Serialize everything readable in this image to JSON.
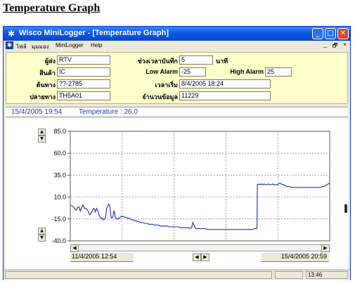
{
  "page_title": "Temperature Graph",
  "window": {
    "title": "Wisco MiniLogger - [Temperature Graph]",
    "controls": {
      "minimize_icon": "minimize-icon",
      "maximize_icon": "maximize-icon",
      "close_icon": "close-icon"
    }
  },
  "menu": {
    "items": [
      {
        "label": "ไฟล์"
      },
      {
        "label": "มุมมอง"
      },
      {
        "label": "MiniLogger"
      },
      {
        "label": "Help"
      }
    ],
    "mdi_minimize": "_",
    "mdi_restore": "🗗",
    "mdi_close": "×"
  },
  "info": {
    "sender_label": "ผู้ส่ง",
    "sender_value": "RTV",
    "product_label": "สินค้า",
    "product_value": "IC",
    "origin_label": "ต้นทาง",
    "origin_value": "??-2785",
    "destination_label": "ปลายทาง",
    "destination_value": "TH5A01",
    "interval_label": "ช่วงเวลาบันทึก",
    "interval_value": "5",
    "interval_unit": "นาที",
    "low_alarm_label": "Low Alarm",
    "low_alarm_value": "-25",
    "high_alarm_label": "High Alarm",
    "high_alarm_value": "25",
    "start_time_label": "เวลาเริ่ม",
    "start_time_value": "8/4/2005  18:24",
    "record_count_label": "จำนวนข้อมูล",
    "record_count_value": "11229"
  },
  "readout": {
    "datetime": "15/4/2005  19:54",
    "temperature": "Temperature : 26.0"
  },
  "range": {
    "start": "11/4/2005  12:54",
    "end": "15/4/2005  20:59"
  },
  "statusbar": {
    "time": "13:46"
  },
  "colors": {
    "titlebar": "#0a58e6",
    "panel": "#ffffcc",
    "line": "#1a2fb5",
    "readout_text": "#1f3cb8",
    "close_button": "#d9472b"
  },
  "chart_data": {
    "type": "line",
    "title": "",
    "xlabel": "",
    "ylabel": "",
    "ylim": [
      -40,
      85
    ],
    "yticks": [
      "85.0",
      "60.0",
      "35.0",
      "10.0",
      "-15.0",
      "-40.0"
    ],
    "ytick_values": [
      85,
      60,
      35,
      10,
      -15,
      -40
    ],
    "grid": true,
    "x_range": [
      "11/4/2005  12:54",
      "15/4/2005  20:59"
    ],
    "series": [
      {
        "values": [
          [
            0,
            0.5
          ],
          [
            2,
            0
          ],
          [
            4,
            -1
          ],
          [
            6,
            -3
          ],
          [
            8,
            -5
          ],
          [
            10,
            -2
          ],
          [
            12,
            -1
          ],
          [
            14,
            -6
          ],
          [
            16,
            -2
          ],
          [
            18,
            1
          ],
          [
            20,
            -3
          ],
          [
            22,
            -3
          ],
          [
            24,
            -5
          ],
          [
            25,
            -6
          ],
          [
            26,
            -8
          ],
          [
            27,
            -10
          ],
          [
            28,
            -10
          ],
          [
            29,
            -8
          ],
          [
            30,
            -7
          ],
          [
            31,
            -6
          ],
          [
            32,
            -4
          ],
          [
            33,
            -3
          ],
          [
            34,
            -4
          ],
          [
            35,
            -7
          ],
          [
            36,
            -5
          ],
          [
            37,
            -3
          ],
          [
            38,
            -5
          ],
          [
            39,
            -6
          ],
          [
            40,
            -10
          ],
          [
            41,
            -11
          ],
          [
            42,
            -13
          ],
          [
            43,
            -14
          ],
          [
            44,
            -15
          ],
          [
            45,
            -14
          ],
          [
            46,
            -15
          ],
          [
            47,
            -16
          ],
          [
            48,
            -15
          ],
          [
            49,
            -14
          ],
          [
            50,
            -10
          ],
          [
            51,
            -3
          ],
          [
            52,
            -1
          ],
          [
            53,
            0
          ],
          [
            54,
            2
          ],
          [
            55,
            1
          ],
          [
            56,
            -4
          ],
          [
            57,
            -12
          ],
          [
            58,
            -14
          ],
          [
            59,
            -13
          ],
          [
            60,
            -12
          ],
          [
            61,
            -6
          ],
          [
            62,
            -7
          ],
          [
            63,
            -13
          ],
          [
            64,
            -14
          ],
          [
            65,
            -15
          ],
          [
            66,
            -15
          ],
          [
            67,
            -15
          ],
          [
            68,
            -14
          ],
          [
            69,
            -14
          ],
          [
            70,
            -13
          ],
          [
            72,
            -12
          ],
          [
            74,
            -12
          ],
          [
            76,
            -13
          ],
          [
            78,
            -13
          ],
          [
            80,
            -14
          ],
          [
            82,
            -14
          ],
          [
            84,
            -15
          ],
          [
            86,
            -16
          ],
          [
            88,
            -16
          ],
          [
            90,
            -17
          ],
          [
            92,
            -17
          ],
          [
            94,
            -18
          ],
          [
            96,
            -18
          ],
          [
            98,
            -19
          ],
          [
            100,
            -19
          ],
          [
            102,
            -19
          ],
          [
            104,
            -20
          ],
          [
            106,
            -20
          ],
          [
            108,
            -20
          ],
          [
            110,
            -21
          ],
          [
            112,
            -21
          ],
          [
            114,
            -21
          ],
          [
            116,
            -21
          ],
          [
            118,
            -22
          ],
          [
            120,
            -22
          ],
          [
            122,
            -22
          ],
          [
            124,
            -22
          ],
          [
            126,
            -23
          ],
          [
            128,
            -23
          ],
          [
            130,
            -23
          ],
          [
            132,
            -23
          ],
          [
            134,
            -23
          ],
          [
            136,
            -23
          ],
          [
            138,
            -24
          ],
          [
            140,
            -24
          ],
          [
            142,
            -24
          ],
          [
            144,
            -24
          ],
          [
            146,
            -24
          ],
          [
            148,
            -24
          ],
          [
            150,
            -24
          ],
          [
            152,
            -24
          ],
          [
            154,
            -25
          ],
          [
            156,
            -25
          ],
          [
            158,
            -25
          ],
          [
            160,
            -25
          ],
          [
            162,
            -25
          ],
          [
            164,
            -25
          ],
          [
            166,
            -25
          ],
          [
            168,
            -26
          ],
          [
            170,
            -25
          ],
          [
            172,
            -19
          ],
          [
            174,
            -23
          ],
          [
            176,
            -26
          ],
          [
            178,
            -26
          ],
          [
            180,
            -26
          ],
          [
            182,
            -26
          ],
          [
            184,
            -26
          ],
          [
            186,
            -26
          ],
          [
            188,
            -26
          ],
          [
            190,
            -26
          ],
          [
            192,
            -27
          ],
          [
            194,
            -27
          ],
          [
            196,
            -27
          ],
          [
            198,
            -27
          ],
          [
            200,
            -27
          ],
          [
            202,
            -27
          ],
          [
            204,
            -27
          ],
          [
            206,
            -27
          ],
          [
            208,
            -27
          ],
          [
            210,
            -27
          ],
          [
            212,
            -27
          ],
          [
            214,
            -27
          ],
          [
            216,
            -27
          ],
          [
            218,
            -27
          ],
          [
            220,
            -27
          ],
          [
            222,
            -27
          ],
          [
            224,
            -27
          ],
          [
            226,
            -27
          ],
          [
            228,
            -27
          ],
          [
            230,
            -27
          ],
          [
            232,
            -27
          ],
          [
            234,
            -27
          ],
          [
            236,
            -27
          ],
          [
            238,
            -27
          ],
          [
            240,
            -27
          ],
          [
            242,
            -27
          ],
          [
            244,
            -27
          ],
          [
            246,
            -27
          ],
          [
            248,
            -27
          ],
          [
            250,
            -27
          ],
          [
            252,
            -27
          ],
          [
            254,
            -27
          ],
          [
            256,
            -27
          ],
          [
            258,
            -26
          ],
          [
            260,
            -26
          ],
          [
            262,
            -26
          ],
          [
            262.5,
            24
          ],
          [
            264,
            25
          ],
          [
            266,
            24
          ],
          [
            268,
            25
          ],
          [
            270,
            24
          ],
          [
            272,
            25
          ],
          [
            274,
            24
          ],
          [
            276,
            24
          ],
          [
            278,
            25
          ],
          [
            280,
            24
          ],
          [
            282,
            24
          ],
          [
            284,
            25
          ],
          [
            286,
            24
          ],
          [
            288,
            24
          ],
          [
            290,
            24
          ],
          [
            292,
            25
          ],
          [
            294,
            26
          ],
          [
            296,
            25
          ],
          [
            298,
            24
          ],
          [
            300,
            24
          ],
          [
            302,
            23
          ],
          [
            304,
            22
          ],
          [
            306,
            22
          ],
          [
            308,
            22
          ],
          [
            310,
            21
          ],
          [
            312,
            21
          ],
          [
            314,
            21
          ],
          [
            316,
            21
          ],
          [
            318,
            21
          ],
          [
            320,
            21
          ],
          [
            322,
            21
          ],
          [
            324,
            21
          ],
          [
            326,
            21
          ],
          [
            328,
            21
          ],
          [
            330,
            21
          ],
          [
            332,
            21
          ],
          [
            334,
            21
          ],
          [
            336,
            21
          ],
          [
            338,
            21
          ],
          [
            340,
            21
          ],
          [
            342,
            21
          ],
          [
            344,
            21
          ],
          [
            346,
            21
          ],
          [
            348,
            21
          ],
          [
            350,
            21
          ],
          [
            352,
            21
          ],
          [
            354,
            22
          ],
          [
            356,
            22
          ],
          [
            358,
            23
          ],
          [
            360,
            24
          ],
          [
            362,
            25
          ],
          [
            364,
            26
          ]
        ]
      }
    ]
  }
}
